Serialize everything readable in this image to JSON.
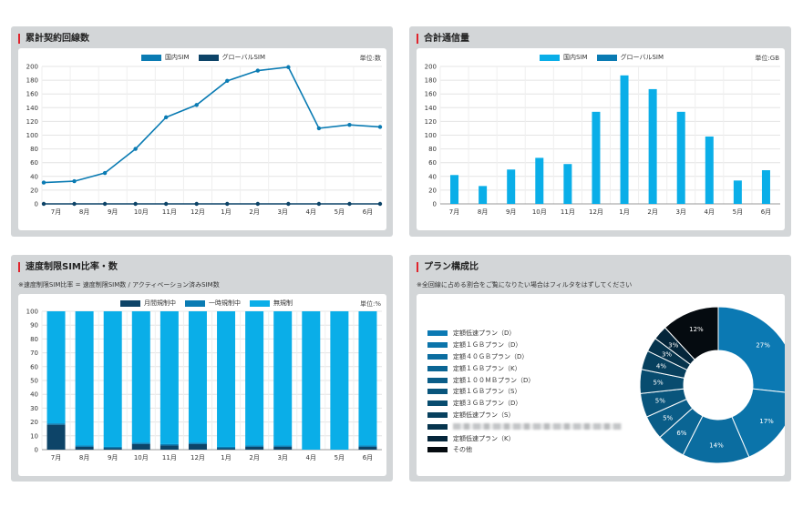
{
  "panels": {
    "contracts": {
      "title": "累計契約回線数",
      "unit": "単位:数",
      "legend": [
        {
          "label": "国内SIM",
          "color": "#0a7bb3"
        },
        {
          "label": "グローバルSIM",
          "color": "#0d4468"
        }
      ]
    },
    "traffic": {
      "title": "合計通信量",
      "unit": "単位:GB",
      "legend": [
        {
          "label": "国内SIM",
          "color": "#0aaee8"
        },
        {
          "label": "グローバルSIM",
          "color": "#0a7bb3"
        }
      ]
    },
    "limit": {
      "title": "速度制限SIM比率・数",
      "note": "※速度制限SIM比率 = 速度制限SIM数 / アクティベーション済みSIM数",
      "unit": "単位:%",
      "legend": [
        {
          "label": "月間規制中",
          "color": "#0d4468"
        },
        {
          "label": "一時規制中",
          "color": "#0a7bb3"
        },
        {
          "label": "無規制",
          "color": "#0aaee8"
        }
      ]
    },
    "plan": {
      "title": "プラン構成比",
      "note": "※全回線に占める割合をご覧になりたい場合はフィルタをはずしてください",
      "legend": [
        {
          "label": "定額低速プラン（D）",
          "color": "#0b79b3"
        },
        {
          "label": "定額１ＧＢプラン（D）",
          "color": "#0b74aa"
        },
        {
          "label": "定額４０ＧＢプラン（D）",
          "color": "#0b6da0"
        },
        {
          "label": "定額１ＧＢプラン（K）",
          "color": "#0a6594"
        },
        {
          "label": "定額１００ＭＢプラン（D）",
          "color": "#0a5d88"
        },
        {
          "label": "定額１ＧＢプラン（S）",
          "color": "#09557c"
        },
        {
          "label": "定額３ＧＢプラン（D）",
          "color": "#084c6f"
        },
        {
          "label": "定額低速プラン（S）",
          "color": "#07405e"
        },
        {
          "label": "",
          "color": "#06344d"
        },
        {
          "label": "定額低速プラン（K）",
          "color": "#04253a"
        },
        {
          "label": "その他",
          "color": "#050b10"
        }
      ]
    }
  },
  "chart_data": [
    {
      "type": "line",
      "title": "累計契約回線数",
      "categories": [
        "7月",
        "8月",
        "9月",
        "10月",
        "11月",
        "12月",
        "1月",
        "2月",
        "3月",
        "4月",
        "5月",
        "6月"
      ],
      "series": [
        {
          "name": "国内SIM",
          "values": [
            31,
            33,
            45,
            80,
            126,
            144,
            179,
            194,
            199,
            110,
            115,
            112
          ]
        },
        {
          "name": "グローバルSIM",
          "values": [
            0,
            0,
            0,
            0,
            0,
            0,
            0,
            0,
            0,
            0,
            0,
            0
          ]
        }
      ],
      "ylim": [
        0,
        200
      ],
      "yticks": [
        0,
        20,
        40,
        60,
        80,
        100,
        120,
        140,
        160,
        180,
        200
      ],
      "grid": true,
      "legend": "top"
    },
    {
      "type": "bar",
      "title": "合計通信量",
      "categories": [
        "7月",
        "8月",
        "9月",
        "10月",
        "11月",
        "12月",
        "1月",
        "2月",
        "3月",
        "4月",
        "5月",
        "6月"
      ],
      "series": [
        {
          "name": "国内SIM",
          "values": [
            42,
            26,
            50,
            67,
            58,
            134,
            187,
            167,
            134,
            98,
            34,
            49
          ]
        },
        {
          "name": "グローバルSIM",
          "values": [
            0,
            0,
            0,
            0,
            0,
            0,
            0,
            0,
            0,
            0,
            0,
            0
          ]
        }
      ],
      "ylim": [
        0,
        200
      ],
      "yticks": [
        0,
        20,
        40,
        60,
        80,
        100,
        120,
        140,
        160,
        180,
        200
      ],
      "grid": true,
      "legend": "top"
    },
    {
      "type": "bar",
      "title": "速度制限SIM比率・数",
      "categories": [
        "7月",
        "8月",
        "9月",
        "10月",
        "11月",
        "12月",
        "1月",
        "2月",
        "3月",
        "4月",
        "5月",
        "6月"
      ],
      "series": [
        {
          "name": "月間規制中",
          "values": [
            18,
            2,
            1,
            4,
            3,
            4,
            1,
            2,
            2,
            0,
            0,
            2
          ]
        },
        {
          "name": "一時規制中",
          "values": [
            1,
            1,
            1,
            1,
            1,
            1,
            1,
            1,
            1,
            0,
            0,
            1
          ]
        },
        {
          "name": "無規制",
          "values": [
            81,
            97,
            98,
            95,
            96,
            95,
            98,
            97,
            97,
            100,
            100,
            97
          ]
        }
      ],
      "stacked": true,
      "ylim": [
        0,
        100
      ],
      "yticks": [
        0,
        10,
        20,
        30,
        40,
        50,
        60,
        70,
        80,
        90,
        100
      ],
      "grid": true,
      "legend": "top"
    },
    {
      "type": "pie",
      "title": "プラン構成比",
      "donut": true,
      "labels": [
        "定額低速プラン（D）",
        "定額１ＧＢプラン（D）",
        "定額４０ＧＢプラン（D）",
        "定額１ＧＢプラン（K）",
        "定額１００ＭＢプラン（D）",
        "定額１ＧＢプラン（S）",
        "定額３ＧＢプラン（D）",
        "定額低速プラン（S）",
        "",
        "定額低速プラン（K）",
        "その他"
      ],
      "values": [
        27,
        17,
        14,
        6,
        5,
        5,
        5,
        4,
        3,
        3,
        12
      ],
      "value_labels": [
        "27%",
        "17%",
        "14%",
        "6%",
        "5%",
        "5%",
        "5%",
        "4%",
        "3%",
        "3%",
        "12%"
      ]
    }
  ]
}
